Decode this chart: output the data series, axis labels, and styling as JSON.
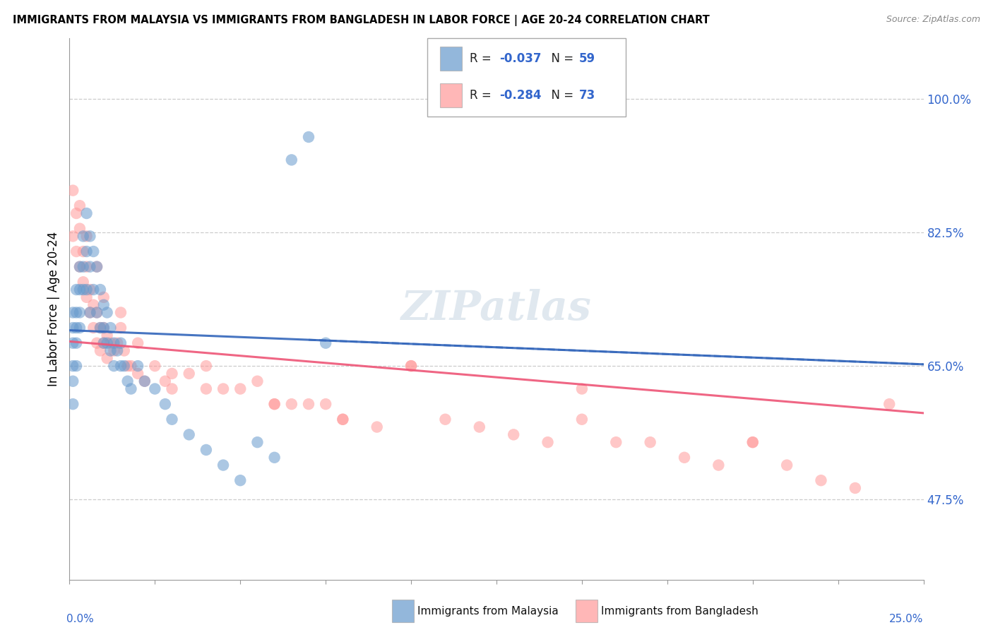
{
  "title": "IMMIGRANTS FROM MALAYSIA VS IMMIGRANTS FROM BANGLADESH IN LABOR FORCE | AGE 20-24 CORRELATION CHART",
  "source": "Source: ZipAtlas.com",
  "ylabel": "In Labor Force | Age 20-24",
  "ytick_values": [
    0.475,
    0.65,
    0.825,
    1.0
  ],
  "ytick_labels": [
    "47.5%",
    "65.0%",
    "82.5%",
    "100.0%"
  ],
  "xrange": [
    0.0,
    0.25
  ],
  "yrange": [
    0.37,
    1.08
  ],
  "malaysia_R": -0.037,
  "malaysia_N": 59,
  "bangladesh_R": -0.284,
  "bangladesh_N": 73,
  "malaysia_color": "#6699CC",
  "bangladesh_color": "#FF9999",
  "malaysia_line_color": "#3366BB",
  "bangladesh_line_color": "#EE5577",
  "watermark": "ZIPatlas",
  "malaysia_x": [
    0.001,
    0.001,
    0.001,
    0.001,
    0.001,
    0.001,
    0.002,
    0.002,
    0.002,
    0.002,
    0.002,
    0.003,
    0.003,
    0.003,
    0.003,
    0.004,
    0.004,
    0.004,
    0.005,
    0.005,
    0.005,
    0.006,
    0.006,
    0.006,
    0.007,
    0.007,
    0.008,
    0.008,
    0.009,
    0.009,
    0.01,
    0.01,
    0.01,
    0.011,
    0.011,
    0.012,
    0.012,
    0.013,
    0.013,
    0.014,
    0.015,
    0.015,
    0.016,
    0.017,
    0.018,
    0.02,
    0.022,
    0.025,
    0.028,
    0.03,
    0.035,
    0.04,
    0.045,
    0.05,
    0.055,
    0.06,
    0.065,
    0.07,
    0.075
  ],
  "malaysia_y": [
    0.72,
    0.7,
    0.68,
    0.65,
    0.63,
    0.6,
    0.75,
    0.72,
    0.7,
    0.68,
    0.65,
    0.78,
    0.75,
    0.72,
    0.7,
    0.82,
    0.78,
    0.75,
    0.85,
    0.8,
    0.75,
    0.82,
    0.78,
    0.72,
    0.8,
    0.75,
    0.78,
    0.72,
    0.75,
    0.7,
    0.73,
    0.7,
    0.68,
    0.72,
    0.68,
    0.7,
    0.67,
    0.68,
    0.65,
    0.67,
    0.68,
    0.65,
    0.65,
    0.63,
    0.62,
    0.65,
    0.63,
    0.62,
    0.6,
    0.58,
    0.56,
    0.54,
    0.52,
    0.5,
    0.55,
    0.53,
    0.92,
    0.95,
    0.68
  ],
  "bangladesh_x": [
    0.001,
    0.001,
    0.002,
    0.002,
    0.003,
    0.003,
    0.004,
    0.004,
    0.005,
    0.005,
    0.006,
    0.006,
    0.007,
    0.007,
    0.008,
    0.008,
    0.009,
    0.009,
    0.01,
    0.01,
    0.011,
    0.011,
    0.012,
    0.013,
    0.014,
    0.015,
    0.016,
    0.017,
    0.018,
    0.02,
    0.022,
    0.025,
    0.028,
    0.03,
    0.035,
    0.04,
    0.045,
    0.05,
    0.055,
    0.06,
    0.065,
    0.07,
    0.075,
    0.08,
    0.09,
    0.1,
    0.11,
    0.12,
    0.13,
    0.14,
    0.15,
    0.16,
    0.17,
    0.18,
    0.19,
    0.2,
    0.21,
    0.22,
    0.23,
    0.24,
    0.003,
    0.005,
    0.008,
    0.01,
    0.015,
    0.02,
    0.03,
    0.04,
    0.06,
    0.08,
    0.1,
    0.15,
    0.2
  ],
  "bangladesh_y": [
    0.88,
    0.82,
    0.85,
    0.8,
    0.83,
    0.78,
    0.8,
    0.76,
    0.78,
    0.74,
    0.75,
    0.72,
    0.73,
    0.7,
    0.72,
    0.68,
    0.7,
    0.67,
    0.7,
    0.68,
    0.69,
    0.66,
    0.68,
    0.67,
    0.68,
    0.7,
    0.67,
    0.65,
    0.65,
    0.64,
    0.63,
    0.65,
    0.63,
    0.62,
    0.64,
    0.65,
    0.62,
    0.62,
    0.63,
    0.6,
    0.6,
    0.6,
    0.6,
    0.58,
    0.57,
    0.65,
    0.58,
    0.57,
    0.56,
    0.55,
    0.58,
    0.55,
    0.55,
    0.53,
    0.52,
    0.55,
    0.52,
    0.5,
    0.49,
    0.6,
    0.86,
    0.82,
    0.78,
    0.74,
    0.72,
    0.68,
    0.64,
    0.62,
    0.6,
    0.58,
    0.65,
    0.62,
    0.55
  ]
}
